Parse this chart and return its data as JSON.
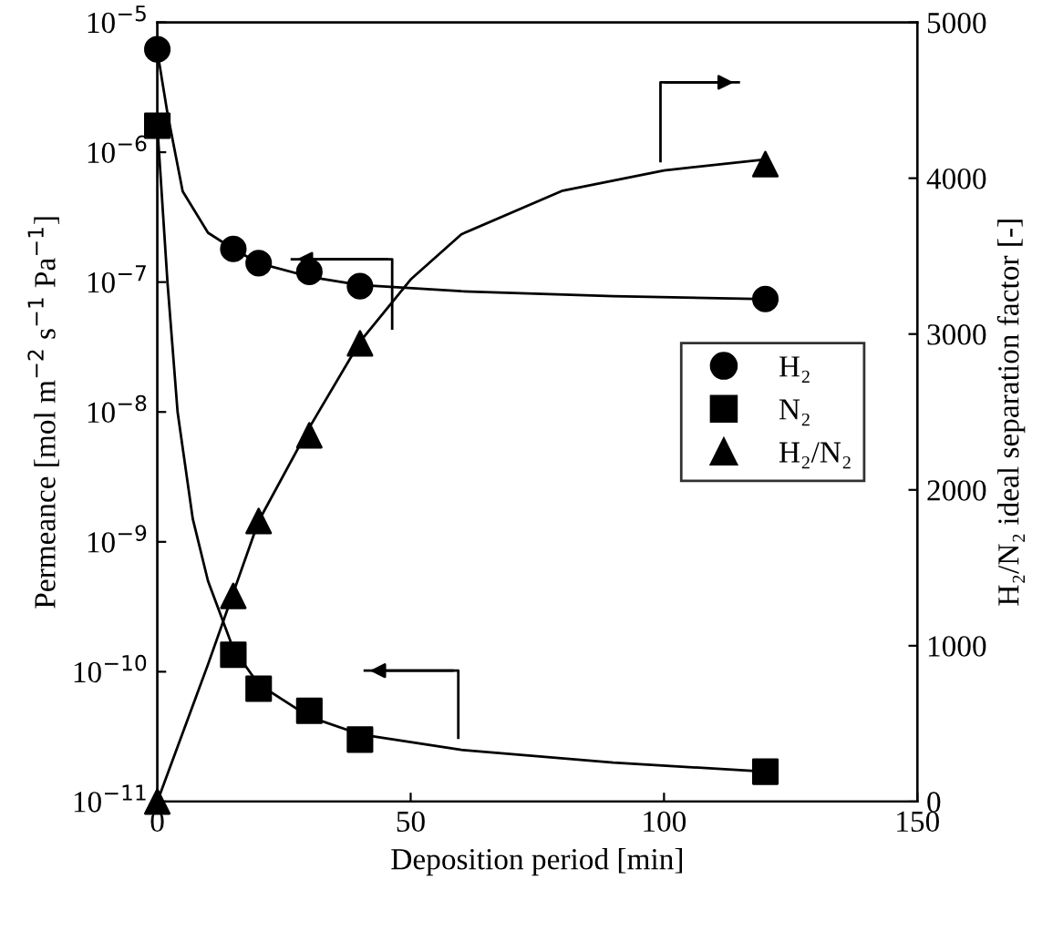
{
  "chart_data": {
    "type": "scatter",
    "xlabel": "Deposition period [min]",
    "ylabel": "Permeance [mol m$^{−2}$ s$^{−1}$ Pa$^{−1}$]",
    "y2label": "H₂/N₂ ideal separation factor [-]",
    "log": "y",
    "grid": false,
    "legend": "right",
    "xlim": [
      0,
      150
    ],
    "xticks": [
      0,
      50,
      100,
      150
    ],
    "ylim": [
      1e-11,
      1e-05
    ],
    "yticks": [
      {
        "value": 1e-11,
        "label": "10$^{−11}$"
      },
      {
        "value": 1e-10,
        "label": "10$^{−10}$"
      },
      {
        "value": 1e-09,
        "label": "10$^{−9}$"
      },
      {
        "value": 1e-08,
        "label": "10$^{−8}$"
      },
      {
        "value": 1e-07,
        "label": "10$^{−7}$"
      },
      {
        "value": 1e-06,
        "label": "10$^{−6}$"
      },
      {
        "value": 1e-05,
        "label": "10$^{−5}$"
      }
    ],
    "y2lim": [
      0,
      5000
    ],
    "y2ticks": [
      0,
      1000,
      2000,
      3000,
      4000,
      5000
    ],
    "series": [
      {
        "name": "H₂",
        "color": "#000000",
        "marker": "circle",
        "x": [
          0,
          15,
          20,
          30,
          40,
          120
        ],
        "values": [
          6.2e-06,
          1.8e-07,
          1.4e-07,
          1.2e-07,
          9.3e-08,
          7.4e-08
        ]
      },
      {
        "name": "N₂",
        "color": "#000000",
        "marker": "square",
        "x": [
          0,
          15,
          20,
          30,
          40,
          120
        ],
        "values": [
          1.6e-06,
          1.35e-10,
          7.4e-11,
          5e-11,
          3e-11,
          1.7e-11
        ]
      },
      {
        "name": "H₂/N₂",
        "color": "#000000",
        "marker": "triangle",
        "axis": "y2",
        "x": [
          0,
          15,
          20,
          30,
          40,
          120
        ],
        "values": [
          0,
          1320,
          1800,
          2350,
          2940,
          4090
        ]
      },
      {
        "type": "line",
        "color": "#000000",
        "marker": "none",
        "line_style": "solid",
        "x": [
          0,
          2,
          5,
          10,
          15,
          20,
          30,
          40,
          60,
          90,
          120
        ],
        "values": [
          6e-06,
          2e-06,
          5e-07,
          2.4e-07,
          1.8e-07,
          1.4e-07,
          1.1e-07,
          9.5e-08,
          8.5e-08,
          7.8e-08,
          7.4e-08
        ]
      },
      {
        "type": "line",
        "color": "#000000",
        "marker": "none",
        "line_style": "solid",
        "x": [
          0,
          2,
          4,
          7,
          10,
          15,
          20,
          30,
          40,
          60,
          90,
          120
        ],
        "values": [
          1.6e-06,
          1e-07,
          1e-08,
          1.5e-09,
          5e-10,
          1.5e-10,
          8e-11,
          4.5e-11,
          3.3e-11,
          2.5e-11,
          2e-11,
          1.7e-11
        ]
      },
      {
        "type": "line",
        "color": "#000000",
        "marker": "none",
        "line_style": "solid",
        "axis": "y2",
        "x": [
          0,
          10,
          20,
          30,
          40,
          50,
          60,
          80,
          100,
          120
        ],
        "values": [
          0,
          880,
          1800,
          2400,
          2950,
          3350,
          3640,
          3920,
          4050,
          4120
        ]
      }
    ]
  }
}
